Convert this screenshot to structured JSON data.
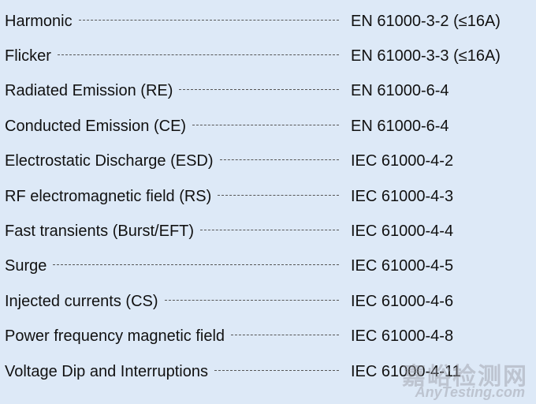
{
  "items": [
    {
      "test": "Harmonic",
      "standard": "EN 61000-3-2 (≤16A)"
    },
    {
      "test": "Flicker",
      "standard": "EN 61000-3-3 (≤16A)"
    },
    {
      "test": "Radiated Emission (RE)",
      "standard": "EN 61000-6-4"
    },
    {
      "test": "Conducted Emission (CE)",
      "standard": "EN 61000-6-4"
    },
    {
      "test": "Electrostatic Discharge (ESD)",
      "standard": "IEC 61000-4-2"
    },
    {
      "test": "RF electromagnetic field (RS)",
      "standard": "IEC 61000-4-3"
    },
    {
      "test": "Fast transients (Burst/EFT)",
      "standard": "IEC 61000-4-4"
    },
    {
      "test": "Surge",
      "standard": "IEC 61000-4-5"
    },
    {
      "test": "Injected currents (CS)",
      "standard": "IEC 61000-4-6"
    },
    {
      "test": "Power frequency magnetic field",
      "standard": "IEC 61000-4-8"
    },
    {
      "test": "Voltage Dip and Interruptions",
      "standard": "IEC 61000-4-11"
    }
  ],
  "watermark": {
    "cn": "嘉峪检测网",
    "en": "AnyTesting.com"
  }
}
